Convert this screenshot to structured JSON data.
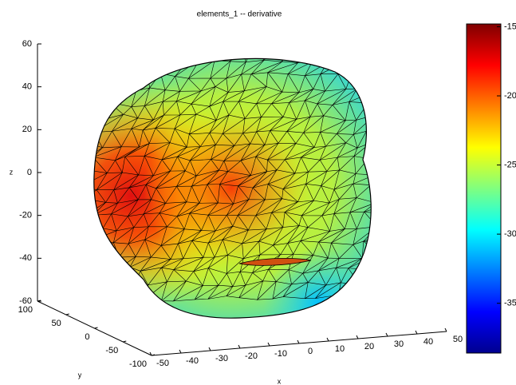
{
  "chart_data": {
    "type": "surface3d",
    "title": "elements_1 -- derivative",
    "xlabel": "x",
    "ylabel": "y",
    "zlabel": "z",
    "xlim": [
      -50,
      50
    ],
    "xticks": [
      -50,
      -40,
      -30,
      -20,
      -10,
      0,
      10,
      20,
      30,
      40,
      50
    ],
    "ylim": [
      -100,
      100
    ],
    "yticks": [
      100,
      50,
      0,
      -50,
      -100
    ],
    "zlim": [
      -60,
      60
    ],
    "zticks": [
      60,
      40,
      20,
      0,
      -20,
      -40,
      -60
    ],
    "colormap": "jet",
    "clim": [
      -38.6,
      -14.8
    ],
    "cticks": [
      -15,
      -20,
      -25,
      -30,
      -35
    ]
  }
}
